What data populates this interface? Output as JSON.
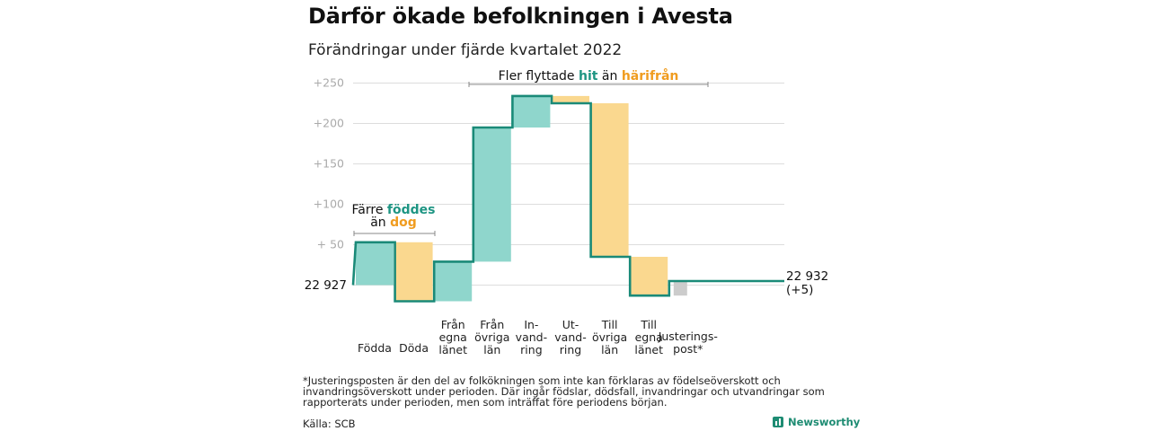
{
  "title": "Därför ökade befolkningen i Avesta",
  "subtitle": "Förändringar under fjärde kvartalet 2022",
  "colors": {
    "inflow": "#8fd6cc",
    "outflow": "#fad88f",
    "adjust": "#cccccc",
    "line": "#1a8a78",
    "hit": "#1e9583",
    "harifran": "#f09c1f",
    "grid": "#dddddd",
    "tick": "#aaaaaa"
  },
  "chart_data": {
    "type": "waterfall",
    "start": {
      "label": "22 927",
      "value": 22927
    },
    "end": {
      "label": "22 932",
      "delta_label": "(+5)",
      "value": 22932
    },
    "y_ticks": [
      "+250",
      "+200",
      "+150",
      "+100",
      "+ 50"
    ],
    "y_tick_values": [
      250,
      200,
      150,
      100,
      50
    ],
    "ylim": [
      -20,
      260
    ],
    "steps": [
      {
        "label": [
          "Födda"
        ],
        "delta": 53,
        "kind": "in"
      },
      {
        "label": [
          "Döda"
        ],
        "delta": -73,
        "kind": "out"
      },
      {
        "label": [
          "Från",
          "egna",
          "länet"
        ],
        "delta": 49,
        "kind": "in"
      },
      {
        "label": [
          "Från",
          "övriga",
          "län"
        ],
        "delta": 166,
        "kind": "in"
      },
      {
        "label": [
          "In-",
          "vand-",
          "ring"
        ],
        "delta": 39,
        "kind": "in"
      },
      {
        "label": [
          "Ut-",
          "vand-",
          "ring"
        ],
        "delta": -9,
        "kind": "out"
      },
      {
        "label": [
          "Till",
          "övriga",
          "län"
        ],
        "delta": -190,
        "kind": "out"
      },
      {
        "label": [
          "Till",
          "egna",
          "länet"
        ],
        "delta": -48,
        "kind": "out"
      },
      {
        "label": [
          "Justerings-",
          "post*"
        ],
        "delta": 18,
        "kind": "adjust"
      }
    ],
    "annotations": {
      "birth": {
        "line1": "Färre",
        "word_green": "föddes",
        "line2_prefix": "än",
        "word_orange": "dog"
      },
      "move": {
        "prefix": "Fler flyttade",
        "word_green": "hit",
        "middle": "än",
        "word_orange": "härifrån"
      }
    }
  },
  "footnote": "*Justeringsposten är den del av folkökningen som inte kan förklaras av födelseöverskott och invandringsöverskott under perioden. Där ingår födslar, dödsfall, invandringar och utvandringar som rapporterats under perioden, men som inträffat före periodens början.",
  "source": "Källa: SCB",
  "brand": "Newsworthy"
}
